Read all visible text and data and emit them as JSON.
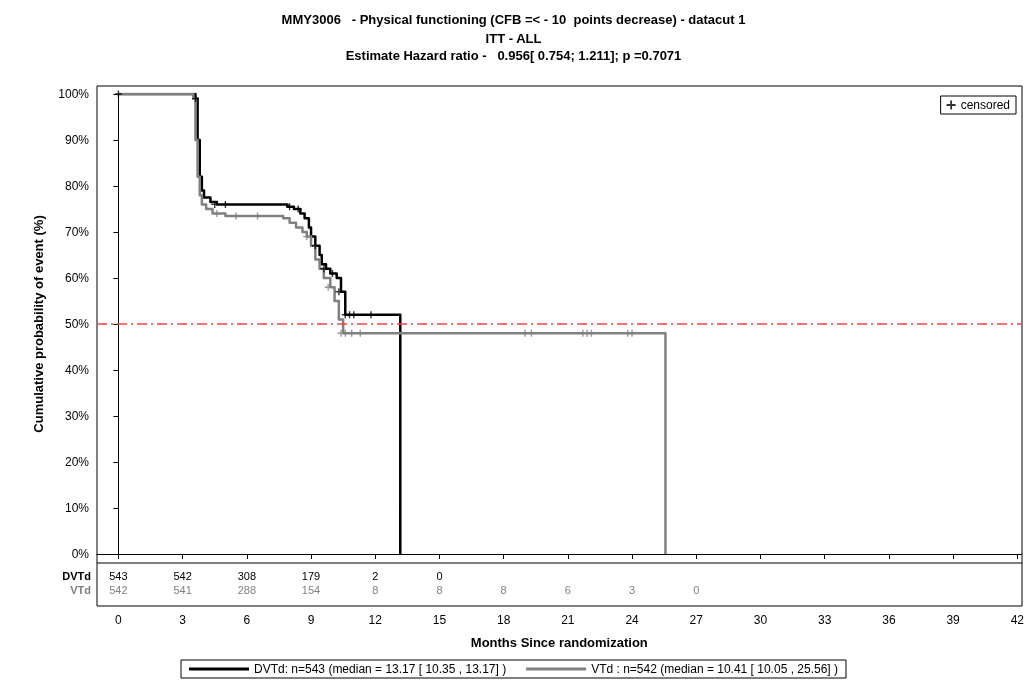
{
  "chart_data": {
    "type": "step",
    "title": "MMY3006   - Physical functioning (CFB =< - 10  points decrease) - datacut 1",
    "subtitle": "ITT - ALL\nEstimate Hazard ratio -   0.956[ 0.754; 1.211]; p =0.7071",
    "xlabel": "Months Since randomization",
    "ylabel": "Cumulative probability of event (%)",
    "xlim": [
      -1,
      42.2
    ],
    "xticks": [
      0,
      3,
      6,
      9,
      12,
      15,
      18,
      21,
      24,
      27,
      30,
      33,
      36,
      39,
      42
    ],
    "ylim": [
      0,
      100
    ],
    "yticks": [
      {
        "value": 0,
        "label": "0%"
      },
      {
        "value": 10,
        "label": "10%"
      },
      {
        "value": 20,
        "label": "20%"
      },
      {
        "value": 30,
        "label": "30%"
      },
      {
        "value": 40,
        "label": "40%"
      },
      {
        "value": 50,
        "label": "50%"
      },
      {
        "value": 60,
        "label": "60%"
      },
      {
        "value": 70,
        "label": "70%"
      },
      {
        "value": 80,
        "label": "80%"
      },
      {
        "value": 90,
        "label": "90%"
      },
      {
        "value": 100,
        "label": "100%"
      }
    ],
    "series": [
      {
        "name": "DVTd: n=543 (median = 13.17 [ 10.35 , 13.17] )",
        "color": "#000000",
        "x": [
          0,
          3.6,
          3.7,
          3.8,
          3.9,
          4.0,
          4.3,
          4.6,
          7.9,
          8.2,
          8.5,
          8.7,
          8.9,
          9.0,
          9.2,
          9.4,
          9.5,
          9.7,
          9.9,
          10.2,
          10.4,
          10.6,
          13.17
        ],
        "values": [
          100,
          99,
          90,
          82,
          79,
          77.5,
          76.5,
          76,
          75.5,
          75,
          74,
          73,
          71,
          69,
          67,
          65,
          63,
          62,
          61,
          60,
          57,
          52,
          0
        ]
      },
      {
        "name": "VTd : n=542 (median = 10.41 [ 10.05 , 25.56] )",
        "color": "#808080",
        "x": [
          0,
          3.5,
          3.6,
          3.7,
          3.8,
          3.9,
          4.1,
          4.4,
          5.0,
          7.7,
          8.0,
          8.3,
          8.6,
          8.8,
          9.0,
          9.2,
          9.4,
          9.6,
          9.9,
          10.1,
          10.3,
          10.5,
          25.56
        ],
        "values": [
          100,
          99,
          90,
          82,
          78,
          76,
          75,
          74,
          73.5,
          73,
          72,
          71,
          70,
          69,
          67,
          64,
          62,
          60,
          58,
          55,
          51,
          48,
          0
        ]
      },
      {
        "name": "censored",
        "type": "scatter",
        "marker": "cross",
        "x": [
          0,
          3.6,
          4.5,
          5.0,
          8.0,
          8.4,
          9.2,
          9.6,
          10.0,
          10.3,
          10.6,
          10.8,
          11.0,
          11.8,
          4.6,
          5.5,
          6.5,
          8.8,
          9.8,
          10.4,
          10.6,
          10.9,
          11.3,
          19.0,
          19.3,
          21.7,
          21.9,
          22.1,
          23.8,
          24.0
        ],
        "values": [
          100,
          99,
          76,
          76,
          75.5,
          75,
          67,
          62,
          61,
          57,
          52,
          52,
          52,
          52,
          74,
          73.5,
          73.5,
          69,
          58,
          48,
          48,
          48,
          48,
          48,
          48,
          48,
          48,
          48,
          48,
          48
        ],
        "colors": [
          "#000000",
          "#000000",
          "#000000",
          "#000000",
          "#000000",
          "#000000",
          "#000000",
          "#000000",
          "#000000",
          "#000000",
          "#000000",
          "#000000",
          "#000000",
          "#000000",
          "#808080",
          "#808080",
          "#808080",
          "#808080",
          "#808080",
          "#808080",
          "#808080",
          "#808080",
          "#808080",
          "#808080",
          "#808080",
          "#808080",
          "#808080",
          "#808080",
          "#808080",
          "#808080"
        ]
      }
    ],
    "ref_lines": [
      {
        "axis": "y",
        "value": 50,
        "color": "#ff4040",
        "line_style": "dashed"
      }
    ],
    "legend": "bottom",
    "annotations": [
      "DVTd",
      "543",
      "542",
      "308",
      "179",
      "2",
      "0",
      "VTd",
      "542",
      "541",
      "288",
      "154",
      "8",
      "8",
      "8",
      "6",
      "3",
      "0"
    ]
  }
}
